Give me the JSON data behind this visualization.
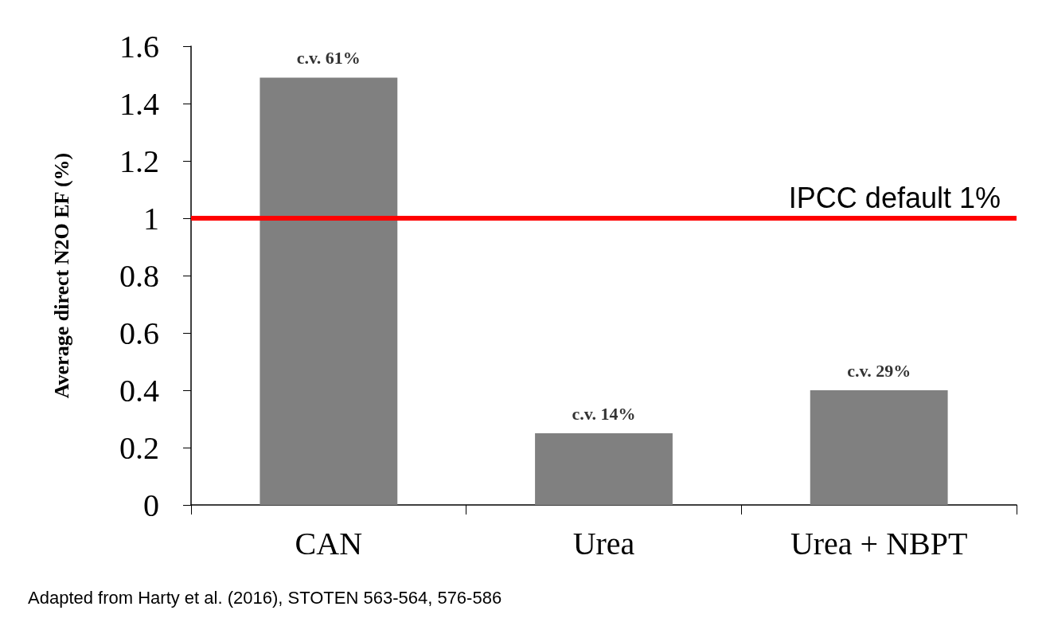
{
  "chart_data": {
    "type": "bar",
    "ylabel": "Average direct N2O EF (%)",
    "categories": [
      "CAN",
      "Urea",
      "Urea + NBPT"
    ],
    "values": [
      1.49,
      0.25,
      0.4
    ],
    "color": "#808080",
    "ylim": [
      0,
      1.6
    ],
    "yticks": [
      0,
      0.2,
      0.4,
      0.6,
      0.8,
      1,
      1.2,
      1.4,
      1.6
    ],
    "grid": false,
    "ref_lines": [
      {
        "axis": "y",
        "value": 1,
        "label": "IPCC default 1%",
        "color": "#ff0000",
        "line_style": "solid"
      }
    ],
    "annotations": [
      {
        "text": "c.v. 61%",
        "x": "CAN",
        "y": 1.49
      },
      {
        "text": "c.v. 14%",
        "x": "Urea",
        "y": 0.25
      },
      {
        "text": "c.v. 29%",
        "x": "Urea + NBPT",
        "y": 0.4
      },
      "Adapted from Harty et al. (2016), STOTEN 563-564, 576-586"
    ]
  }
}
